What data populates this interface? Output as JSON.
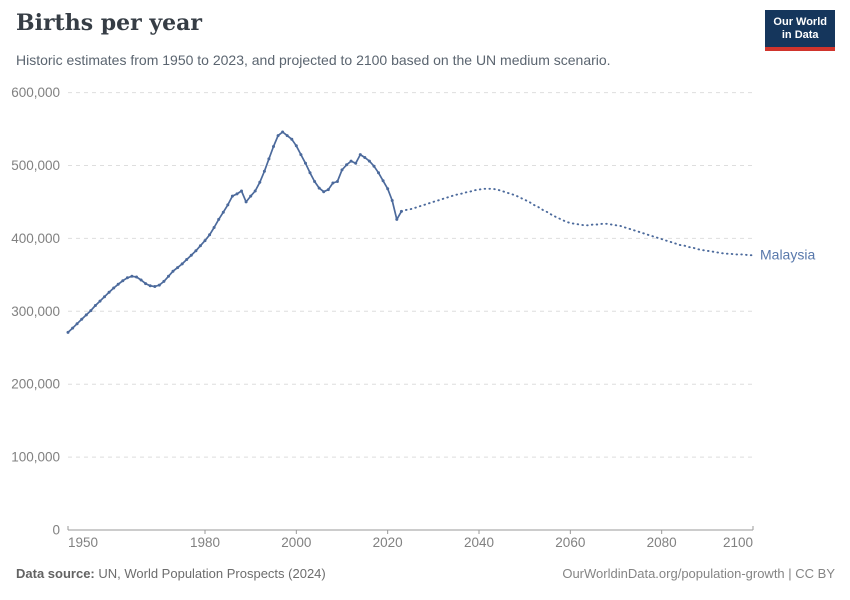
{
  "header": {
    "title": "Births per year",
    "subtitle": "Historic estimates from 1950 to 2023, and projected to 2100 based on the UN medium scenario.",
    "logo": {
      "line1": "Our World",
      "line2": "in Data",
      "bg_color": "#15365c",
      "stripe_color": "#d0342c"
    }
  },
  "footer": {
    "source_label": "Data source:",
    "source_text": " UN, World Population Prospects (2024)",
    "attribution": "OurWorldinData.org/population-growth | CC BY"
  },
  "chart_data": {
    "type": "line",
    "title": "Births per year",
    "entity_label": "Malaysia",
    "xlabel": "",
    "ylabel": "",
    "xlim": [
      1950,
      2100
    ],
    "ylim": [
      0,
      600000
    ],
    "grid": "horizontal-dashed",
    "legend_position": "end-of-line-label",
    "x_ticks": [
      1950,
      1980,
      2000,
      2020,
      2040,
      2060,
      2080,
      2100
    ],
    "y_ticks": [
      0,
      100000,
      200000,
      300000,
      400000,
      500000,
      600000
    ],
    "y_tick_labels": [
      "0",
      "100,000",
      "200,000",
      "300,000",
      "400,000",
      "500,000",
      "600,000"
    ],
    "colors": {
      "line": "#4c6a9c",
      "entity_label": "#5878ab",
      "gridline": "#dedede",
      "axis": "#9a9a9a",
      "tick_text": "#818181"
    },
    "series": [
      {
        "name": "Malaysia — historic estimates",
        "style": "solid",
        "markers": true,
        "x": [
          1950,
          1951,
          1952,
          1953,
          1954,
          1955,
          1956,
          1957,
          1958,
          1959,
          1960,
          1961,
          1962,
          1963,
          1964,
          1965,
          1966,
          1967,
          1968,
          1969,
          1970,
          1971,
          1972,
          1973,
          1974,
          1975,
          1976,
          1977,
          1978,
          1979,
          1980,
          1981,
          1982,
          1983,
          1984,
          1985,
          1986,
          1987,
          1988,
          1989,
          1990,
          1991,
          1992,
          1993,
          1994,
          1995,
          1996,
          1997,
          1998,
          1999,
          2000,
          2001,
          2002,
          2003,
          2004,
          2005,
          2006,
          2007,
          2008,
          2009,
          2010,
          2011,
          2012,
          2013,
          2014,
          2015,
          2016,
          2017,
          2018,
          2019,
          2020,
          2021,
          2022,
          2023
        ],
        "values": [
          271000,
          277000,
          283000,
          289000,
          295000,
          301000,
          308000,
          314000,
          320000,
          326000,
          332000,
          337000,
          342000,
          346000,
          348000,
          347000,
          343000,
          338000,
          335000,
          334000,
          336000,
          341000,
          348000,
          355000,
          360000,
          365000,
          371000,
          377000,
          383000,
          390000,
          397000,
          405000,
          415000,
          426000,
          436000,
          446000,
          458000,
          461000,
          465000,
          450000,
          458000,
          465000,
          477000,
          492000,
          509000,
          526000,
          541000,
          546000,
          541000,
          536000,
          527000,
          515000,
          503000,
          490000,
          478000,
          469000,
          464000,
          467000,
          476000,
          478000,
          494000,
          501000,
          506000,
          503000,
          515000,
          511000,
          506000,
          499000,
          490000,
          479000,
          468000,
          452000,
          426000,
          437000
        ]
      },
      {
        "name": "Malaysia — UN medium projection",
        "style": "dotted",
        "markers": false,
        "x": [
          2023,
          2024,
          2025,
          2026,
          2027,
          2028,
          2029,
          2030,
          2031,
          2032,
          2033,
          2034,
          2035,
          2036,
          2037,
          2038,
          2039,
          2040,
          2041,
          2042,
          2043,
          2044,
          2045,
          2046,
          2047,
          2048,
          2049,
          2050,
          2051,
          2052,
          2053,
          2054,
          2055,
          2056,
          2057,
          2058,
          2059,
          2060,
          2061,
          2062,
          2063,
          2064,
          2065,
          2066,
          2067,
          2068,
          2069,
          2070,
          2071,
          2072,
          2073,
          2074,
          2075,
          2076,
          2077,
          2078,
          2079,
          2080,
          2081,
          2082,
          2083,
          2084,
          2085,
          2086,
          2087,
          2088,
          2089,
          2090,
          2091,
          2092,
          2093,
          2094,
          2095,
          2096,
          2097,
          2098,
          2099,
          2100
        ],
        "values": [
          437000,
          439000,
          440000,
          442000,
          444000,
          446000,
          448000,
          450000,
          452000,
          454000,
          456000,
          458000,
          460000,
          461000,
          463000,
          464000,
          466000,
          467000,
          468000,
          468000,
          468000,
          467000,
          465000,
          463000,
          461000,
          459000,
          456000,
          453000,
          450000,
          446000,
          443000,
          439000,
          436000,
          432000,
          429000,
          426000,
          423000,
          421000,
          420000,
          419000,
          418000,
          418000,
          419000,
          419000,
          420000,
          420000,
          419000,
          418000,
          417000,
          415000,
          413000,
          411000,
          409000,
          407000,
          405000,
          403000,
          401000,
          399000,
          397000,
          395000,
          393000,
          391000,
          390000,
          388000,
          387000,
          385000,
          384000,
          383000,
          382000,
          381000,
          380000,
          379000,
          379000,
          378000,
          378000,
          378000,
          377000,
          377000
        ]
      }
    ]
  }
}
